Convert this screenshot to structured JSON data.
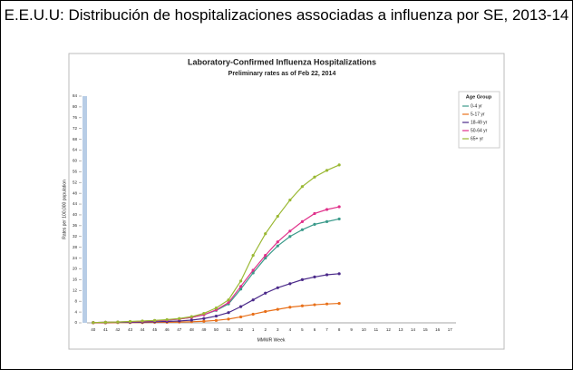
{
  "header": {
    "title": "E.E.U.U: Distribución de hospitalizaciones associadas a influenza por SE, 2013-14"
  },
  "chart_data": {
    "type": "line",
    "title": "Laboratory-Confirmed Influenza Hospitalizations",
    "subtitle": "Preliminary rates as of Feb 22, 2014",
    "x_label": "MMWR Week",
    "y_label": "Rates per 100,000 population",
    "legend_title": "Age Group",
    "legend": "right",
    "grid": false,
    "categories": [
      "40",
      "41",
      "42",
      "43",
      "44",
      "45",
      "46",
      "47",
      "48",
      "49",
      "50",
      "51",
      "52",
      "1",
      "2",
      "3",
      "4",
      "5",
      "6",
      "7",
      "8",
      "9",
      "10",
      "11",
      "12",
      "13",
      "14",
      "15",
      "16",
      "17"
    ],
    "ylim": [
      0,
      84
    ],
    "yticks": [
      0,
      4,
      8,
      12,
      16,
      20,
      24,
      28,
      32,
      36,
      40,
      44,
      48,
      52,
      56,
      60,
      64,
      68,
      72,
      76,
      80,
      84
    ],
    "series": [
      {
        "name": "0-4 yr",
        "color": "#3a9a8a",
        "values": [
          0.1,
          0.2,
          0.3,
          0.4,
          0.6,
          0.8,
          1.0,
          1.4,
          2.0,
          3.0,
          4.6,
          7,
          12.5,
          18.5,
          24,
          28.5,
          32,
          34.5,
          36.5,
          37.5,
          38.5,
          null,
          null,
          null,
          null,
          null,
          null,
          null,
          null,
          null
        ]
      },
      {
        "name": "5-17 yr",
        "color": "#e8701a",
        "values": [
          0,
          0,
          0.1,
          0.1,
          0.1,
          0.2,
          0.2,
          0.3,
          0.4,
          0.6,
          0.9,
          1.4,
          2.2,
          3.2,
          4.2,
          5,
          5.8,
          6.3,
          6.7,
          7,
          7.2,
          null,
          null,
          null,
          null,
          null,
          null,
          null,
          null,
          null
        ]
      },
      {
        "name": "18-49 yr",
        "color": "#4b2a8a",
        "values": [
          0.1,
          0.1,
          0.2,
          0.2,
          0.3,
          0.4,
          0.5,
          0.7,
          1.0,
          1.6,
          2.5,
          3.8,
          6,
          8.5,
          11,
          13,
          14.5,
          16,
          17,
          17.8,
          18.2,
          null,
          null,
          null,
          null,
          null,
          null,
          null,
          null,
          null
        ]
      },
      {
        "name": "50-64 yr",
        "color": "#e0308a",
        "values": [
          0.1,
          0.2,
          0.3,
          0.4,
          0.6,
          0.8,
          1.0,
          1.4,
          2.0,
          3.0,
          4.8,
          7.5,
          13.5,
          19.5,
          25,
          30,
          34,
          37.5,
          40.5,
          42,
          43,
          null,
          null,
          null,
          null,
          null,
          null,
          null,
          null,
          null
        ]
      },
      {
        "name": "65+ yr",
        "color": "#9ab833",
        "values": [
          0.1,
          0.2,
          0.3,
          0.5,
          0.7,
          0.9,
          1.2,
          1.6,
          2.3,
          3.5,
          5.5,
          8.5,
          15.5,
          25,
          33,
          39.5,
          45.5,
          50.5,
          54,
          56.5,
          58.5,
          null,
          null,
          null,
          null,
          null,
          null,
          null,
          null,
          null
        ]
      }
    ]
  }
}
